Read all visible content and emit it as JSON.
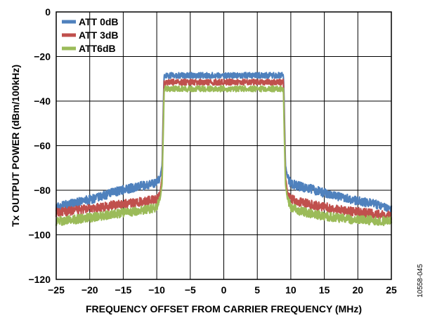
{
  "figure_id": "10558-045",
  "chart_data": {
    "type": "line",
    "title": "",
    "xlabel": "FREQUENCY OFFSET FROM CARRIER FREQUENCY (MHz)",
    "ylabel": "Tx OUTPUT POWER (dBm/100kHz)",
    "xlim": [
      -25,
      25
    ],
    "ylim": [
      -120,
      0
    ],
    "xticks": [
      -25,
      -20,
      -15,
      -10,
      -5,
      0,
      5,
      10,
      15,
      20,
      25
    ],
    "xtick_labels": [
      "−25",
      "−20",
      "−15",
      "−10",
      "−5",
      "0",
      "5",
      "10",
      "15",
      "20",
      "25"
    ],
    "yticks": [
      0,
      -20,
      -40,
      -60,
      -80,
      -100,
      -120
    ],
    "ytick_labels": [
      "0",
      "−20",
      "−40",
      "−60",
      "−80",
      "−100",
      "−120"
    ],
    "grid": true,
    "legend_position": "top-left",
    "series": [
      {
        "name": "ATT 0dB",
        "color": "#4f81bd",
        "x": [
          -25,
          -22,
          -19,
          -16,
          -13,
          -11,
          -10,
          -9.5,
          -9.2,
          -9.0,
          -8.9,
          -5,
          0,
          5,
          8.9,
          9.0,
          9.2,
          9.5,
          10,
          11,
          13,
          16,
          19,
          22,
          25
        ],
        "y": [
          -87.5,
          -85.5,
          -83.5,
          -80.5,
          -78.5,
          -77.5,
          -76.5,
          -74,
          -69,
          -40,
          -28.5,
          -28.5,
          -28.5,
          -28.5,
          -28.5,
          -40,
          -69,
          -74,
          -77,
          -78,
          -79.5,
          -82,
          -84,
          -86,
          -88
        ]
      },
      {
        "name": "ATT 3dB",
        "color": "#c0504d",
        "x": [
          -25,
          -22,
          -19,
          -16,
          -13,
          -11,
          -10,
          -9.5,
          -9.2,
          -9.0,
          -8.9,
          -5,
          0,
          5,
          8.9,
          9.0,
          9.2,
          9.5,
          10,
          11,
          13,
          16,
          19,
          22,
          25
        ],
        "y": [
          -90,
          -89,
          -88,
          -86.5,
          -85.5,
          -84.5,
          -84,
          -81,
          -74,
          -45,
          -31.5,
          -31.5,
          -31.5,
          -31.5,
          -31.5,
          -45,
          -74,
          -81,
          -84,
          -85,
          -86.5,
          -88,
          -89.5,
          -90.5,
          -91.5
        ]
      },
      {
        "name": "ATT6dB",
        "color": "#9bbb59",
        "x": [
          -25,
          -22,
          -19,
          -16,
          -13,
          -11,
          -10,
          -9.5,
          -9.2,
          -9.0,
          -8.9,
          -5,
          0,
          5,
          8.9,
          9.0,
          9.2,
          9.5,
          10,
          11,
          13,
          16,
          19,
          22,
          25
        ],
        "y": [
          -94,
          -93,
          -92,
          -90.5,
          -89.5,
          -88.5,
          -87.5,
          -84,
          -77,
          -50,
          -34.5,
          -34.5,
          -34.5,
          -34.5,
          -34.5,
          -50,
          -77,
          -84,
          -87.5,
          -89,
          -90.5,
          -92,
          -93,
          -93.5,
          -94
        ]
      }
    ]
  }
}
